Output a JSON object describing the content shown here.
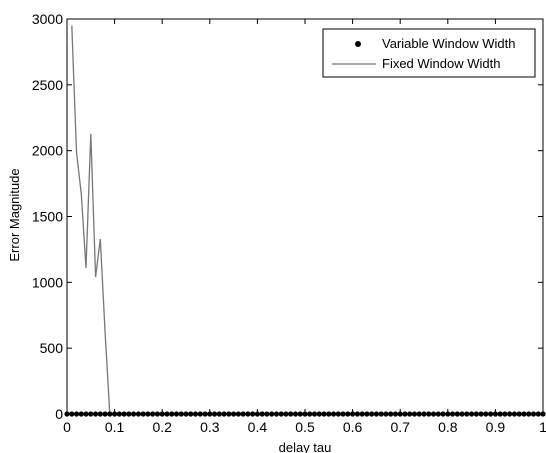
{
  "chart_data": {
    "type": "line",
    "title": "",
    "xlabel": "delay tau",
    "ylabel": "Error Magnitude",
    "xlim": [
      0,
      1
    ],
    "ylim": [
      0,
      3000
    ],
    "x_ticks": [
      0,
      0.1,
      0.2,
      0.3,
      0.4,
      0.5,
      0.6,
      0.7,
      0.8,
      0.9,
      1
    ],
    "x_tick_labels": [
      "0",
      "0.1",
      "0.2",
      "0.3",
      "0.4",
      "0.5",
      "0.6",
      "0.7",
      "0.8",
      "0.9",
      "1"
    ],
    "y_ticks": [
      0,
      500,
      1000,
      1500,
      2000,
      2500,
      3000
    ],
    "y_tick_labels": [
      "0",
      "500",
      "1000",
      "1500",
      "2000",
      "2500",
      "3000"
    ],
    "grid": false,
    "legend_position": "top-right",
    "series": [
      {
        "name": "Variable Window Width",
        "style": "markers",
        "color": "#000000",
        "x_start": 0,
        "x_end": 1,
        "x_step": 0.01,
        "constant_y": 0
      },
      {
        "name": "Fixed Window Width",
        "style": "line",
        "color": "#777777",
        "x": [
          0.01,
          0.02,
          0.03,
          0.04,
          0.05,
          0.06,
          0.07,
          0.08,
          0.09,
          0.1,
          0.2,
          0.3,
          0.4,
          0.5,
          0.6,
          0.7,
          0.8,
          0.9,
          1.0
        ],
        "y": [
          2950,
          1990,
          1670,
          1110,
          2130,
          1040,
          1330,
          620,
          0,
          0,
          0,
          0,
          0,
          0,
          0,
          0,
          0,
          0,
          0
        ]
      }
    ]
  }
}
